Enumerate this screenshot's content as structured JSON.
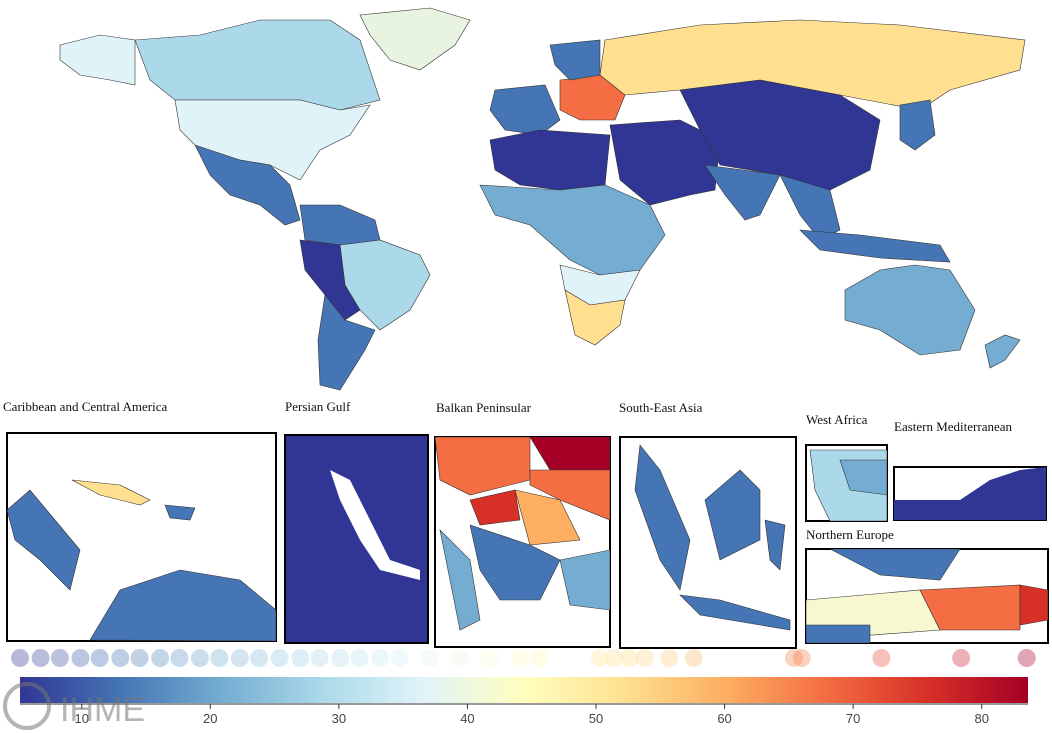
{
  "map": {
    "insets": [
      {
        "title": "Caribbean and Central America"
      },
      {
        "title": "Persian Gulf"
      },
      {
        "title": "Balkan Peninsular"
      },
      {
        "title": "South-East Asia"
      },
      {
        "title": "West Africa"
      },
      {
        "title": "Eastern Mediterranean"
      },
      {
        "title": "Northern Europe"
      }
    ]
  },
  "colorbar": {
    "range": [
      5.2,
      83.6
    ],
    "ticks": [
      10,
      20,
      30,
      40,
      50,
      60,
      70,
      80
    ],
    "colorscale": [
      "#313695",
      "#4575b4",
      "#74add1",
      "#abd9e9",
      "#e0f3f8",
      "#ffffbf",
      "#fee090",
      "#fdae61",
      "#f46d43",
      "#d73027",
      "#a50026"
    ],
    "points": [
      5.2,
      6.8,
      8.3,
      9.9,
      11.4,
      13,
      14.5,
      16.1,
      17.6,
      19.2,
      20.7,
      22.3,
      23.8,
      25.4,
      27,
      28.5,
      30.1,
      31.6,
      33.2,
      34.7,
      37.1,
      39.4,
      41.7,
      44.1,
      45.6,
      50.3,
      51.4,
      52.6,
      53.8,
      55.7,
      57.6,
      65.4,
      66,
      72.2,
      78.4,
      83.5
    ]
  },
  "logo": "IHME"
}
